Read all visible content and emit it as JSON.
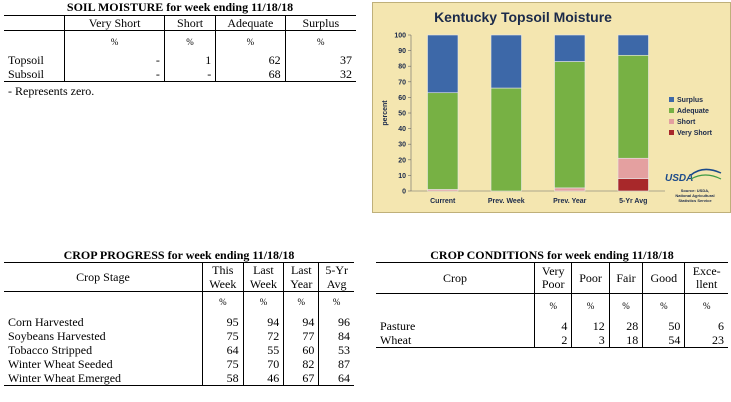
{
  "soil": {
    "title": "SOIL MOISTURE for week ending 11/18/18",
    "headers": [
      "Very Short",
      "Short",
      "Adequate",
      "Surplus"
    ],
    "pct": "%",
    "rows": [
      {
        "label": "Topsoil",
        "values": [
          "-",
          "1",
          "62",
          "37"
        ]
      },
      {
        "label": "Subsoil",
        "values": [
          "-",
          "-",
          "68",
          "32"
        ]
      }
    ],
    "note": "- Represents zero."
  },
  "progress": {
    "title": "CROP PROGRESS for week ending 11/18/18",
    "stage_header": "Crop Stage",
    "headers": [
      [
        "This",
        "Week"
      ],
      [
        "Last",
        "Week"
      ],
      [
        "Last",
        "Year"
      ],
      [
        "5-Yr",
        "Avg"
      ]
    ],
    "pct": "%",
    "rows": [
      {
        "label": "Corn Harvested",
        "values": [
          "95",
          "94",
          "94",
          "96"
        ]
      },
      {
        "label": "Soybeans Harvested",
        "values": [
          "75",
          "72",
          "77",
          "84"
        ]
      },
      {
        "label": "Tobacco Stripped",
        "values": [
          "64",
          "55",
          "60",
          "53"
        ]
      },
      {
        "label": "Winter Wheat Seeded",
        "values": [
          "75",
          "70",
          "82",
          "87"
        ]
      },
      {
        "label": "Winter Wheat Emerged",
        "values": [
          "58",
          "46",
          "67",
          "64"
        ]
      }
    ]
  },
  "conditions": {
    "title": "CROP CONDITIONS for week ending 11/18/18",
    "crop_header": "Crop",
    "headers": [
      [
        "Very",
        "Poor"
      ],
      [
        "Poor",
        ""
      ],
      [
        "Fair",
        ""
      ],
      [
        "Good",
        ""
      ],
      [
        "Exce-",
        "llent"
      ]
    ],
    "pct": "%",
    "rows": [
      {
        "label": "Pasture",
        "values": [
          "4",
          "12",
          "28",
          "50",
          "6"
        ]
      },
      {
        "label": "Wheat",
        "values": [
          "2",
          "3",
          "18",
          "54",
          "23"
        ]
      }
    ]
  },
  "chart_data": {
    "type": "bar",
    "stacked": true,
    "title": "Kentucky Topsoil Moisture",
    "ylabel": "percent",
    "xlabel": "",
    "ylim": [
      0,
      100
    ],
    "yticks": [
      0,
      10,
      20,
      30,
      40,
      50,
      60,
      70,
      80,
      90,
      100
    ],
    "categories": [
      "Current",
      "Prev. Week",
      "Prev. Year",
      "5-Yr Avg"
    ],
    "series": [
      {
        "name": "Very Short",
        "color": "#a8282a",
        "values": [
          0,
          0,
          0,
          8
        ]
      },
      {
        "name": "Short",
        "color": "#e4a0a0",
        "values": [
          1,
          0,
          2,
          13
        ]
      },
      {
        "name": "Adequate",
        "color": "#77b144",
        "values": [
          62,
          66,
          81,
          66
        ]
      },
      {
        "name": "Surplus",
        "color": "#3d68a8",
        "values": [
          37,
          34,
          17,
          13
        ]
      }
    ],
    "legend_order": [
      "Surplus",
      "Adequate",
      "Short",
      "Very Short"
    ],
    "legend_position": "right",
    "grid": false,
    "logo_text": "USDA",
    "source_text": [
      "Source: USDA,",
      "National Agricultural",
      "Statistics Service"
    ]
  }
}
